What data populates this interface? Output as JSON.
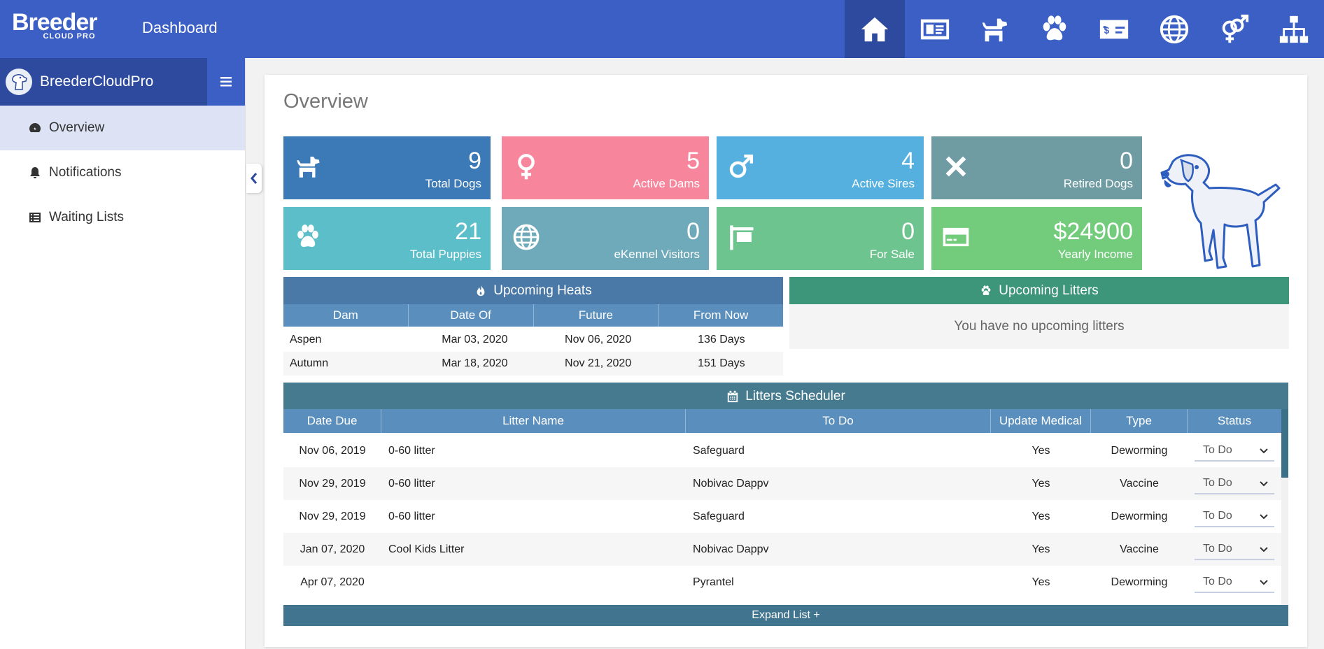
{
  "app": {
    "logo_main": "Breeder",
    "logo_sub": "CLOUD PRO",
    "page_title": "Dashboard"
  },
  "topnav": [
    {
      "icon": "home-icon",
      "active": true
    },
    {
      "icon": "id-card-icon",
      "active": false
    },
    {
      "icon": "dog-icon",
      "active": false
    },
    {
      "icon": "paw-icon",
      "active": false
    },
    {
      "icon": "money-check-icon",
      "active": false
    },
    {
      "icon": "globe-icon",
      "active": false
    },
    {
      "icon": "venus-mars-icon",
      "active": false
    },
    {
      "icon": "sitemap-icon",
      "active": false
    }
  ],
  "sidebar": {
    "brand": "BreederCloudPro",
    "items": [
      {
        "label": "Overview",
        "icon": "tachometer-icon",
        "active": true
      },
      {
        "label": "Notifications",
        "icon": "bell-icon",
        "active": false
      },
      {
        "label": "Waiting Lists",
        "icon": "list-icon",
        "active": false
      }
    ]
  },
  "overview": {
    "title": "Overview",
    "stats": [
      {
        "value": "9",
        "label": "Total Dogs",
        "icon": "dog-icon",
        "color": "#3c7ab7"
      },
      {
        "value": "5",
        "label": "Active Dams",
        "icon": "venus-icon",
        "color": "#f7869c"
      },
      {
        "value": "4",
        "label": "Active Sires",
        "icon": "mars-icon",
        "color": "#55b0e0"
      },
      {
        "value": "0",
        "label": "Retired Dogs",
        "icon": "times-icon",
        "color": "#6f9ba2"
      },
      {
        "value": "21",
        "label": "Total Puppies",
        "icon": "paw-icon",
        "color": "#5bbec8"
      },
      {
        "value": "0",
        "label": "eKennel Visitors",
        "icon": "globe-icon",
        "color": "#6faabb"
      },
      {
        "value": "0",
        "label": "For Sale",
        "icon": "sign-icon",
        "color": "#6ec48f"
      },
      {
        "value": "$24900",
        "label": "Yearly Income",
        "icon": "credit-card-icon",
        "color": "#72cc7c"
      }
    ]
  },
  "upcoming_heats": {
    "title": "Upcoming Heats",
    "columns": [
      "Dam",
      "Date Of",
      "Future",
      "From Now"
    ],
    "rows": [
      [
        "Aspen",
        "Mar 03, 2020",
        "Nov 06, 2020",
        "136 Days"
      ],
      [
        "Autumn",
        "Mar 18, 2020",
        "Nov 21, 2020",
        "151 Days"
      ]
    ]
  },
  "upcoming_litters": {
    "title": "Upcoming Litters",
    "empty_text": "You have no upcoming litters"
  },
  "scheduler": {
    "title": "Litters Scheduler",
    "columns": [
      "Date Due",
      "Litter Name",
      "To Do",
      "Update Medical",
      "Type",
      "Status"
    ],
    "rows": [
      [
        "Nov 06, 2019",
        "0-60 litter",
        "Safeguard",
        "Yes",
        "Deworming",
        "To Do"
      ],
      [
        "Nov 29, 2019",
        "0-60 litter",
        "Nobivac Dappv",
        "Yes",
        "Vaccine",
        "To Do"
      ],
      [
        "Nov 29, 2019",
        "0-60 litter",
        "Safeguard",
        "Yes",
        "Deworming",
        "To Do"
      ],
      [
        "Jan 07, 2020",
        "Cool Kids Litter",
        "Nobivac Dappv",
        "Yes",
        "Vaccine",
        "To Do"
      ],
      [
        "Apr 07, 2020",
        "",
        "Pyrantel",
        "Yes",
        "Deworming",
        "To Do"
      ]
    ],
    "expand_label": "Expand List +"
  },
  "colors": {
    "topbar": "#3b5fc4",
    "topbar_active": "#2e4a9e",
    "heats_header": "#4a79a8",
    "litters_header": "#3d957a",
    "scheduler_header": "#467a8e",
    "column_header": "#5a8fbd"
  }
}
